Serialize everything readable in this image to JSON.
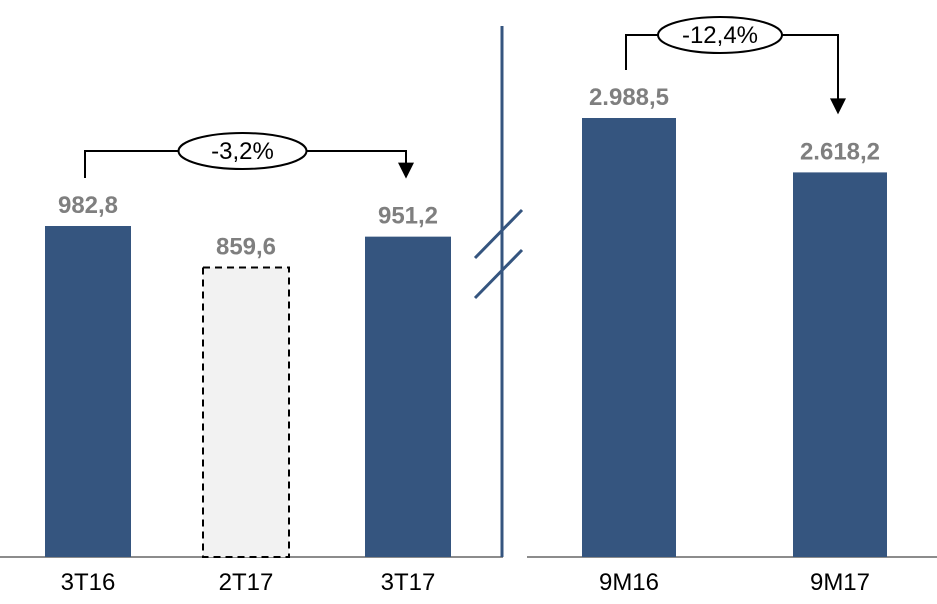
{
  "chart_data": [
    {
      "type": "bar",
      "categories": [
        "3T16",
        "2T17",
        "3T17"
      ],
      "values": [
        982.8,
        859.6,
        951.2
      ],
      "value_labels": [
        "982,8",
        "859,6",
        "951,2"
      ],
      "highlight": [
        true,
        false,
        true
      ],
      "comparison": {
        "from": "3T16",
        "to": "3T17",
        "label": "-3,2%"
      }
    },
    {
      "type": "bar",
      "categories": [
        "9M16",
        "9M17"
      ],
      "values": [
        2988.5,
        2618.2
      ],
      "value_labels": [
        "2.988,5",
        "2.618,2"
      ],
      "highlight": [
        true,
        true
      ],
      "comparison": {
        "from": "9M16",
        "to": "9M17",
        "label": "-12,4%"
      }
    }
  ],
  "colors": {
    "bar": "#35557f",
    "muted_bar_fill": "#f2f2f2",
    "muted_bar_stroke": "#000000",
    "value_text": "#7f7f7f",
    "axis": "#8c8c8c",
    "divider": "#35557f"
  }
}
